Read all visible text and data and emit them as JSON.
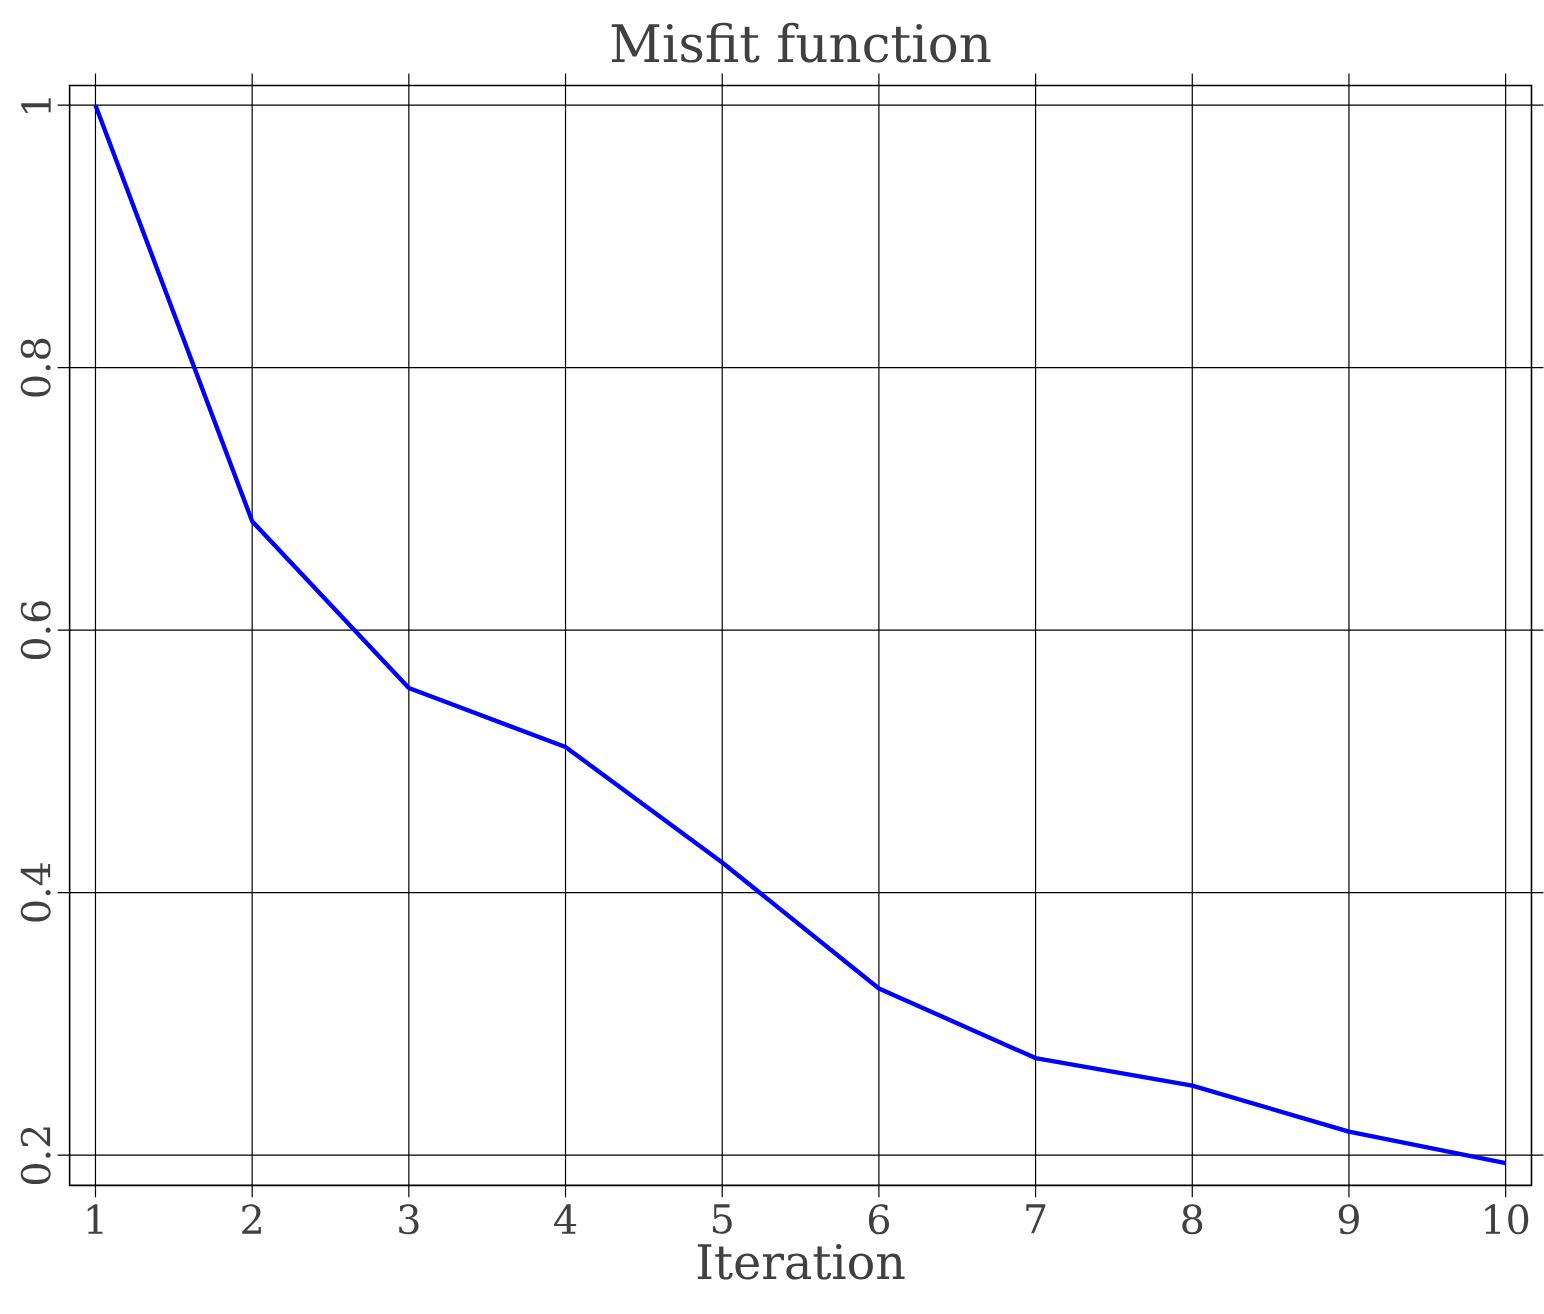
{
  "chart_data": {
    "type": "line",
    "title": "Misfit function",
    "xlabel": "Iteration",
    "x": [
      1,
      2,
      3,
      4,
      5,
      6,
      7,
      8,
      9,
      10
    ],
    "series": [
      {
        "color": "#0000ff",
        "values": [
          1.0,
          0.683,
          0.556,
          0.511,
          0.423,
          0.327,
          0.274,
          0.253,
          0.218,
          0.194
        ]
      }
    ],
    "xlim": [
      0.835,
      10.165
    ],
    "ylim": [
      0.177,
      1.015
    ],
    "xticks": [
      1,
      2,
      3,
      4,
      5,
      6,
      7,
      8,
      9,
      10
    ],
    "yticks": [
      0.2,
      0.4,
      0.6,
      0.8,
      1
    ],
    "grid": true,
    "marker": "none",
    "line_style": "solid"
  }
}
